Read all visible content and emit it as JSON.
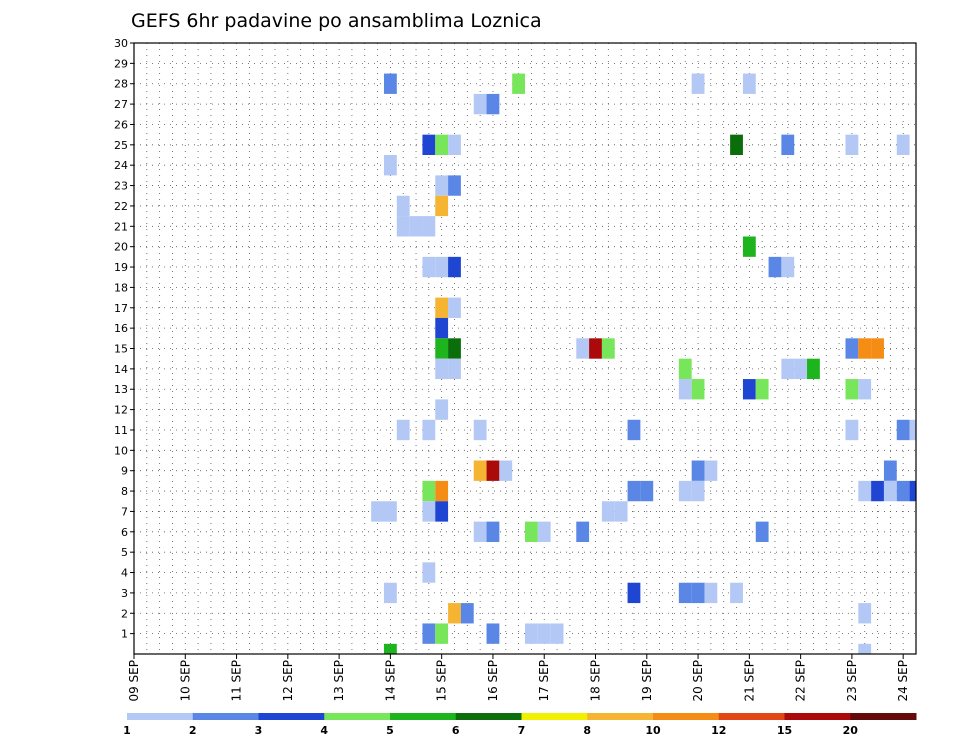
{
  "chart_data": {
    "type": "heatmap",
    "title": "GEFS 6hr padavine po ansamblima Loznica",
    "y_ticks": [
      "1",
      "2",
      "3",
      "4",
      "5",
      "6",
      "7",
      "8",
      "9",
      "10",
      "11",
      "12",
      "13",
      "14",
      "15",
      "16",
      "17",
      "18",
      "19",
      "20",
      "21",
      "22",
      "23",
      "24",
      "25",
      "26",
      "27",
      "28",
      "29",
      "30"
    ],
    "x_ticks": [
      "09 SEP",
      "10 SEP",
      "11 SEP",
      "12 SEP",
      "13 SEP",
      "14 SEP",
      "15 SEP",
      "16 SEP",
      "17 SEP",
      "18 SEP",
      "19 SEP",
      "20 SEP",
      "21 SEP",
      "22 SEP",
      "23 SEP",
      "24 SEP"
    ],
    "xlim": [
      0,
      61
    ],
    "ylim": [
      0,
      30
    ],
    "grid": true,
    "legend": {
      "position": "bottom",
      "labels": [
        "1",
        "2",
        "3",
        "4",
        "5",
        "6",
        "7",
        "8",
        "10",
        "12",
        "15",
        "20"
      ],
      "colors": [
        "#b4c8f5",
        "#5a87e6",
        "#1e46d2",
        "#78e65a",
        "#1eb41e",
        "#0a6e0a",
        "#f0f000",
        "#f5b432",
        "#f58c14",
        "#e14614",
        "#aa0a0a",
        "#640a0a"
      ]
    },
    "levels": [
      1,
      2,
      3,
      4,
      5,
      6,
      7,
      8,
      10,
      12,
      15,
      20
    ],
    "cells": [
      {
        "t": 20,
        "m": 28,
        "v": 2
      },
      {
        "t": 30,
        "m": 28,
        "v": 4
      },
      {
        "t": 44,
        "m": 28,
        "v": 1
      },
      {
        "t": 48,
        "m": 28,
        "v": 1
      },
      {
        "t": 27,
        "m": 27,
        "v": 1
      },
      {
        "t": 28,
        "m": 27,
        "v": 2
      },
      {
        "t": 23,
        "m": 25,
        "v": 3
      },
      {
        "t": 24,
        "m": 25,
        "v": 4
      },
      {
        "t": 25,
        "m": 25,
        "v": 1
      },
      {
        "t": 47,
        "m": 25,
        "v": 6
      },
      {
        "t": 51,
        "m": 25,
        "v": 2
      },
      {
        "t": 56,
        "m": 25,
        "v": 1
      },
      {
        "t": 60,
        "m": 25,
        "v": 1
      },
      {
        "t": 20,
        "m": 24,
        "v": 1
      },
      {
        "t": 24,
        "m": 23,
        "v": 1
      },
      {
        "t": 25,
        "m": 23,
        "v": 2
      },
      {
        "t": 21,
        "m": 22,
        "v": 1
      },
      {
        "t": 24,
        "m": 22,
        "v": 8
      },
      {
        "t": 21,
        "m": 21,
        "v": 1
      },
      {
        "t": 22,
        "m": 21,
        "v": 1
      },
      {
        "t": 23,
        "m": 21,
        "v": 1
      },
      {
        "t": 48,
        "m": 20,
        "v": 5
      },
      {
        "t": 23,
        "m": 19,
        "v": 1
      },
      {
        "t": 24,
        "m": 19,
        "v": 1
      },
      {
        "t": 25,
        "m": 19,
        "v": 3
      },
      {
        "t": 50,
        "m": 19,
        "v": 2
      },
      {
        "t": 51,
        "m": 19,
        "v": 1
      },
      {
        "t": 24,
        "m": 17,
        "v": 8
      },
      {
        "t": 25,
        "m": 17,
        "v": 1
      },
      {
        "t": 24,
        "m": 16,
        "v": 3
      },
      {
        "t": 24,
        "m": 15,
        "v": 5
      },
      {
        "t": 25,
        "m": 15,
        "v": 6
      },
      {
        "t": 35,
        "m": 15,
        "v": 1
      },
      {
        "t": 36,
        "m": 15,
        "v": 15
      },
      {
        "t": 37,
        "m": 15,
        "v": 4
      },
      {
        "t": 56,
        "m": 15,
        "v": 2
      },
      {
        "t": 57,
        "m": 15,
        "v": 10
      },
      {
        "t": 58,
        "m": 15,
        "v": 10
      },
      {
        "t": 24,
        "m": 14,
        "v": 1
      },
      {
        "t": 25,
        "m": 14,
        "v": 1
      },
      {
        "t": 43,
        "m": 14,
        "v": 4
      },
      {
        "t": 51,
        "m": 14,
        "v": 1
      },
      {
        "t": 52,
        "m": 14,
        "v": 1
      },
      {
        "t": 53,
        "m": 14,
        "v": 5
      },
      {
        "t": 43,
        "m": 13,
        "v": 1
      },
      {
        "t": 44,
        "m": 13,
        "v": 4
      },
      {
        "t": 48,
        "m": 13,
        "v": 3
      },
      {
        "t": 49,
        "m": 13,
        "v": 4
      },
      {
        "t": 56,
        "m": 13,
        "v": 4
      },
      {
        "t": 57,
        "m": 13,
        "v": 1
      },
      {
        "t": 24,
        "m": 12,
        "v": 1
      },
      {
        "t": 21,
        "m": 11,
        "v": 1
      },
      {
        "t": 23,
        "m": 11,
        "v": 1
      },
      {
        "t": 27,
        "m": 11,
        "v": 1
      },
      {
        "t": 39,
        "m": 11,
        "v": 2
      },
      {
        "t": 56,
        "m": 11,
        "v": 1
      },
      {
        "t": 60,
        "m": 11,
        "v": 2
      },
      {
        "t": 61,
        "m": 11,
        "v": 1
      },
      {
        "t": 27,
        "m": 9,
        "v": 8
      },
      {
        "t": 28,
        "m": 9,
        "v": 15
      },
      {
        "t": 29,
        "m": 9,
        "v": 1
      },
      {
        "t": 44,
        "m": 9,
        "v": 2
      },
      {
        "t": 45,
        "m": 9,
        "v": 1
      },
      {
        "t": 59,
        "m": 9,
        "v": 2
      },
      {
        "t": 23,
        "m": 8,
        "v": 4
      },
      {
        "t": 24,
        "m": 8,
        "v": 10
      },
      {
        "t": 39,
        "m": 8,
        "v": 2
      },
      {
        "t": 40,
        "m": 8,
        "v": 2
      },
      {
        "t": 43,
        "m": 8,
        "v": 1
      },
      {
        "t": 44,
        "m": 8,
        "v": 1
      },
      {
        "t": 57,
        "m": 8,
        "v": 1
      },
      {
        "t": 58,
        "m": 8,
        "v": 3
      },
      {
        "t": 59,
        "m": 8,
        "v": 1
      },
      {
        "t": 60,
        "m": 8,
        "v": 2
      },
      {
        "t": 61,
        "m": 8,
        "v": 3
      },
      {
        "t": 19,
        "m": 7,
        "v": 1
      },
      {
        "t": 20,
        "m": 7,
        "v": 1
      },
      {
        "t": 23,
        "m": 7,
        "v": 1
      },
      {
        "t": 24,
        "m": 7,
        "v": 3
      },
      {
        "t": 37,
        "m": 7,
        "v": 1
      },
      {
        "t": 38,
        "m": 7,
        "v": 1
      },
      {
        "t": 27,
        "m": 6,
        "v": 1
      },
      {
        "t": 28,
        "m": 6,
        "v": 2
      },
      {
        "t": 31,
        "m": 6,
        "v": 4
      },
      {
        "t": 32,
        "m": 6,
        "v": 1
      },
      {
        "t": 35,
        "m": 6,
        "v": 2
      },
      {
        "t": 49,
        "m": 6,
        "v": 2
      },
      {
        "t": 23,
        "m": 4,
        "v": 1
      },
      {
        "t": 20,
        "m": 3,
        "v": 1
      },
      {
        "t": 39,
        "m": 3,
        "v": 3
      },
      {
        "t": 43,
        "m": 3,
        "v": 2
      },
      {
        "t": 44,
        "m": 3,
        "v": 2
      },
      {
        "t": 45,
        "m": 3,
        "v": 1
      },
      {
        "t": 47,
        "m": 3,
        "v": 1
      },
      {
        "t": 25,
        "m": 2,
        "v": 8
      },
      {
        "t": 26,
        "m": 2,
        "v": 2
      },
      {
        "t": 57,
        "m": 2,
        "v": 1
      },
      {
        "t": 23,
        "m": 1,
        "v": 2
      },
      {
        "t": 24,
        "m": 1,
        "v": 4
      },
      {
        "t": 28,
        "m": 1,
        "v": 2
      },
      {
        "t": 31,
        "m": 1,
        "v": 1
      },
      {
        "t": 32,
        "m": 1,
        "v": 1
      },
      {
        "t": 33,
        "m": 1,
        "v": 1
      },
      {
        "t": 20,
        "m": 0,
        "v": 5
      },
      {
        "t": 57,
        "m": 0,
        "v": 1
      }
    ]
  }
}
